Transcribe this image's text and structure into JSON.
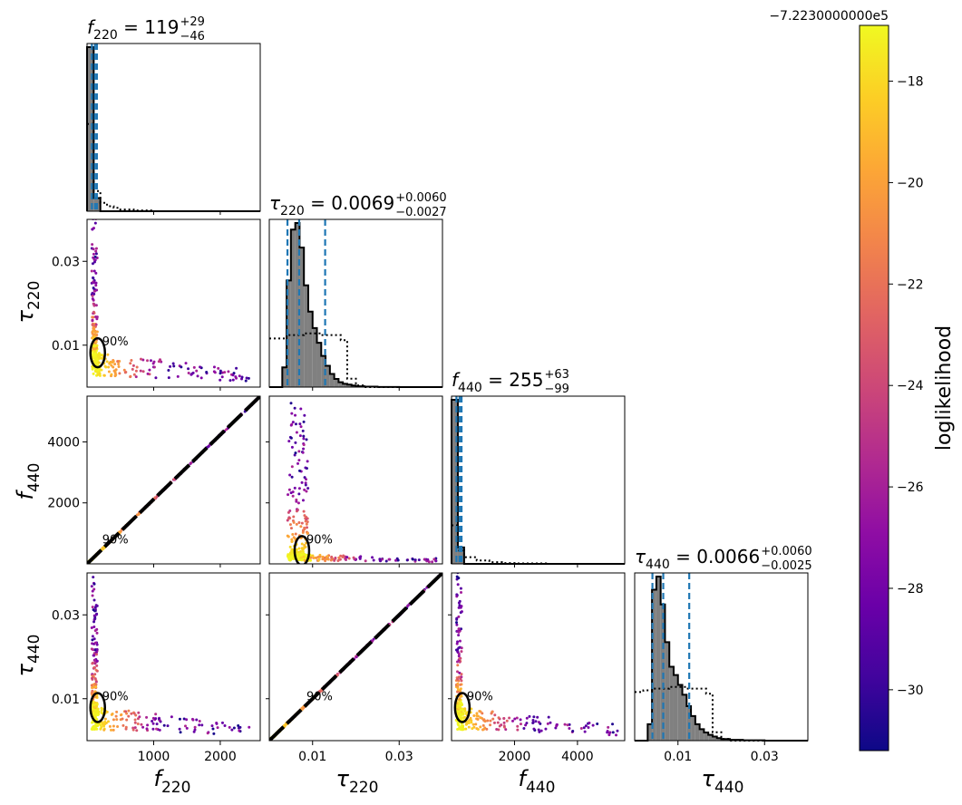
{
  "chart_data": {
    "type": "corner",
    "parameters": [
      "f_220",
      "tau_220",
      "f_440",
      "tau_440"
    ],
    "axis_labels": {
      "f_220": {
        "main": "f",
        "sub": "220"
      },
      "tau_220": {
        "main": "τ",
        "sub": "220"
      },
      "f_440": {
        "main": "f",
        "sub": "440"
      },
      "tau_440": {
        "main": "τ",
        "sub": "440"
      }
    },
    "ranges": {
      "f_220": [
        0,
        2600
      ],
      "tau_220": [
        0.0,
        0.04
      ],
      "f_440": [
        0,
        5500
      ],
      "tau_440": [
        0.0,
        0.04
      ]
    },
    "ticks": {
      "f_220": {
        "values": [
          1000,
          2000
        ],
        "labels": [
          "1000",
          "2000"
        ]
      },
      "tau_220": {
        "values": [
          0.01,
          0.03
        ],
        "labels": [
          "0.01",
          "0.03"
        ]
      },
      "f_440": {
        "values": [
          2000,
          4000
        ],
        "labels": [
          "2000",
          "4000"
        ]
      },
      "tau_440": {
        "values": [
          0.01,
          0.03
        ],
        "labels": [
          "0.01",
          "0.03"
        ]
      }
    },
    "titles": [
      {
        "param": "f_220",
        "symbol": "f",
        "sub": "220",
        "value": "= 119",
        "plus": "+29",
        "minus": "−46"
      },
      {
        "param": "tau_220",
        "symbol": "τ",
        "sub": "220",
        "value": "= 0.0069",
        "plus": "+0.0060",
        "minus": "−0.0027"
      },
      {
        "param": "f_440",
        "symbol": "f",
        "sub": "440",
        "value": "= 255",
        "plus": "+63",
        "minus": "−99"
      },
      {
        "param": "tau_440",
        "symbol": "τ",
        "sub": "440",
        "value": "= 0.0066",
        "plus": "+0.0060",
        "minus": "−0.0025"
      }
    ],
    "quantiles": {
      "f_220": [
        73,
        119,
        148
      ],
      "tau_220": [
        0.0042,
        0.0069,
        0.0129
      ],
      "f_440": [
        156,
        255,
        318
      ],
      "tau_440": [
        0.0041,
        0.0066,
        0.0126
      ]
    },
    "posterior_histograms": {
      "f_220": {
        "bins": [
          0,
          100,
          200,
          300,
          400,
          500,
          600,
          700,
          800,
          900,
          1000,
          1100,
          1200,
          1300,
          1400,
          1500,
          1600,
          1700,
          1800,
          1900,
          2000,
          2100,
          2200,
          2300,
          2400,
          2500,
          2600
        ],
        "counts": [
          1.0,
          0.08,
          0,
          0,
          0,
          0,
          0,
          0,
          0,
          0,
          0,
          0,
          0,
          0,
          0,
          0,
          0,
          0,
          0,
          0,
          0,
          0,
          0,
          0,
          0,
          0
        ]
      },
      "tau_220": {
        "bins": [
          0.0,
          0.001,
          0.002,
          0.003,
          0.004,
          0.005,
          0.006,
          0.007,
          0.008,
          0.009,
          0.01,
          0.011,
          0.012,
          0.013,
          0.014,
          0.015,
          0.016,
          0.017,
          0.018,
          0.019,
          0.02,
          0.022,
          0.025,
          0.03,
          0.04
        ],
        "counts": [
          0,
          0,
          0,
          0.12,
          0.65,
          0.96,
          1.0,
          0.85,
          0.62,
          0.46,
          0.36,
          0.27,
          0.19,
          0.13,
          0.08,
          0.05,
          0.03,
          0.02,
          0.015,
          0.01,
          0.005,
          0.003,
          0.001,
          0
        ]
      },
      "f_440": {
        "bins": [
          0,
          200,
          400,
          600,
          800,
          1000,
          1200,
          1400,
          1600,
          1800,
          2000,
          2500,
          3000,
          3500,
          4000,
          4500,
          5000,
          5500
        ],
        "counts": [
          1.0,
          0.1,
          0,
          0,
          0,
          0,
          0,
          0,
          0,
          0,
          0,
          0,
          0,
          0,
          0,
          0,
          0
        ]
      },
      "tau_440": {
        "bins": [
          0.0,
          0.001,
          0.002,
          0.003,
          0.004,
          0.005,
          0.006,
          0.007,
          0.008,
          0.009,
          0.01,
          0.011,
          0.012,
          0.013,
          0.014,
          0.015,
          0.016,
          0.017,
          0.018,
          0.019,
          0.02,
          0.022,
          0.025,
          0.03,
          0.04
        ],
        "counts": [
          0,
          0,
          0,
          0.1,
          0.92,
          1.0,
          0.83,
          0.6,
          0.45,
          0.4,
          0.34,
          0.28,
          0.21,
          0.15,
          0.1,
          0.07,
          0.05,
          0.035,
          0.025,
          0.015,
          0.01,
          0.005,
          0.002,
          0
        ]
      }
    },
    "prior_histograms": {
      "f_220": {
        "x": [
          0,
          100,
          200,
          300,
          400,
          500,
          600,
          700,
          800,
          1000,
          2600
        ],
        "y": [
          0.52,
          0.12,
          0.05,
          0.03,
          0.02,
          0.01,
          0.01,
          0.005,
          0.005,
          0,
          0
        ]
      },
      "tau_220": {
        "x": [
          0.0,
          0.002,
          0.004,
          0.008,
          0.012,
          0.0165,
          0.018,
          0.02,
          0.022,
          0.04
        ],
        "y": [
          0.29,
          0.29,
          0.31,
          0.32,
          0.31,
          0.28,
          0.05,
          0.01,
          0.0,
          0.0
        ]
      },
      "f_440": {
        "x": [
          0,
          200,
          400,
          800,
          1200,
          1600,
          2000,
          3000,
          5500
        ],
        "y": [
          0.23,
          0.08,
          0.04,
          0.02,
          0.01,
          0.005,
          0.003,
          0,
          0
        ]
      },
      "tau_440": {
        "x": [
          0.0,
          0.002,
          0.004,
          0.008,
          0.012,
          0.0165,
          0.018,
          0.02,
          0.022,
          0.04
        ],
        "y": [
          0.29,
          0.3,
          0.31,
          0.32,
          0.31,
          0.28,
          0.05,
          0.01,
          0.0,
          0.0
        ]
      }
    },
    "colorbar": {
      "label": "loglikelihood",
      "offset_text": "−7.2230000000e5",
      "range": [
        -31.2,
        -16.9
      ],
      "ticks": [
        -18,
        -20,
        -22,
        -24,
        -26,
        -28,
        -30
      ],
      "tick_labels": [
        "−18",
        "−20",
        "−22",
        "−24",
        "−26",
        "−28",
        "−30"
      ],
      "colormap": "plasma"
    },
    "contour_label": "90%",
    "colors": {
      "quantile_line": "#1f77b4",
      "hist_fill": "#808080",
      "colormap_low": "#0d0887",
      "colormap_high": "#f0f921"
    }
  }
}
